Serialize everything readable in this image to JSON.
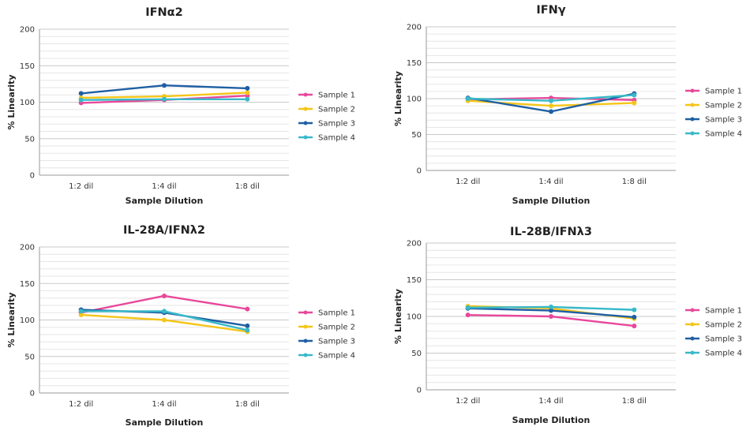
{
  "colors": {
    "Sample 1": "#e8489b",
    "Sample 2": "#f5c518",
    "Sample 3": "#1f5fa3",
    "Sample 4": "#38b9c9"
  },
  "chart_data": [
    {
      "type": "line",
      "title": "IFNα2",
      "xlabel": "Sample Dilution",
      "ylabel": "% Linearity",
      "categories": [
        "1:2 dil",
        "1:4 dil",
        "1:8 dil"
      ],
      "ylim": [
        0,
        200
      ],
      "yticks": [
        0,
        50,
        100,
        150,
        200
      ],
      "series": [
        {
          "name": "Sample 1",
          "values": [
            99,
            103,
            109
          ]
        },
        {
          "name": "Sample 2",
          "values": [
            106,
            108,
            113
          ]
        },
        {
          "name": "Sample 3",
          "values": [
            112,
            123,
            119
          ]
        },
        {
          "name": "Sample 4",
          "values": [
            103,
            104,
            104
          ]
        }
      ],
      "legend": "right"
    },
    {
      "type": "line",
      "title": "IFNγ",
      "xlabel": "Sample Dilution",
      "ylabel": "% Linearity",
      "categories": [
        "1:2 dil",
        "1:4 dil",
        "1:8 dil"
      ],
      "ylim": [
        0,
        200
      ],
      "yticks": [
        0,
        50,
        100,
        150,
        200
      ],
      "series": [
        {
          "name": "Sample 1",
          "values": [
            99,
            101,
            98
          ]
        },
        {
          "name": "Sample 2",
          "values": [
            97,
            90,
            94
          ]
        },
        {
          "name": "Sample 3",
          "values": [
            101,
            82,
            107
          ]
        },
        {
          "name": "Sample 4",
          "values": [
            100,
            97,
            105
          ]
        }
      ],
      "legend": "right"
    },
    {
      "type": "line",
      "title": "IL-28A/IFNλ2",
      "xlabel": "Sample Dilution",
      "ylabel": "% Linearity",
      "categories": [
        "1:2 dil",
        "1:4 dil",
        "1:8 dil"
      ],
      "ylim": [
        0,
        200
      ],
      "yticks": [
        0,
        50,
        100,
        150,
        200
      ],
      "series": [
        {
          "name": "Sample 1",
          "values": [
            110,
            133,
            115
          ]
        },
        {
          "name": "Sample 2",
          "values": [
            107,
            100,
            84
          ]
        },
        {
          "name": "Sample 3",
          "values": [
            114,
            110,
            92
          ]
        },
        {
          "name": "Sample 4",
          "values": [
            112,
            112,
            86
          ]
        }
      ],
      "legend": "right"
    },
    {
      "type": "line",
      "title": "IL-28B/IFNλ3",
      "xlabel": "Sample Dilution",
      "ylabel": "% Linearity",
      "categories": [
        "1:2 dil",
        "1:4 dil",
        "1:8 dil"
      ],
      "ylim": [
        0,
        200
      ],
      "yticks": [
        0,
        50,
        100,
        150,
        200
      ],
      "series": [
        {
          "name": "Sample 1",
          "values": [
            102,
            100,
            87
          ]
        },
        {
          "name": "Sample 2",
          "values": [
            114,
            111,
            97
          ]
        },
        {
          "name": "Sample 3",
          "values": [
            111,
            108,
            99
          ]
        },
        {
          "name": "Sample 4",
          "values": [
            112,
            113,
            109
          ]
        }
      ],
      "legend": "right"
    }
  ]
}
